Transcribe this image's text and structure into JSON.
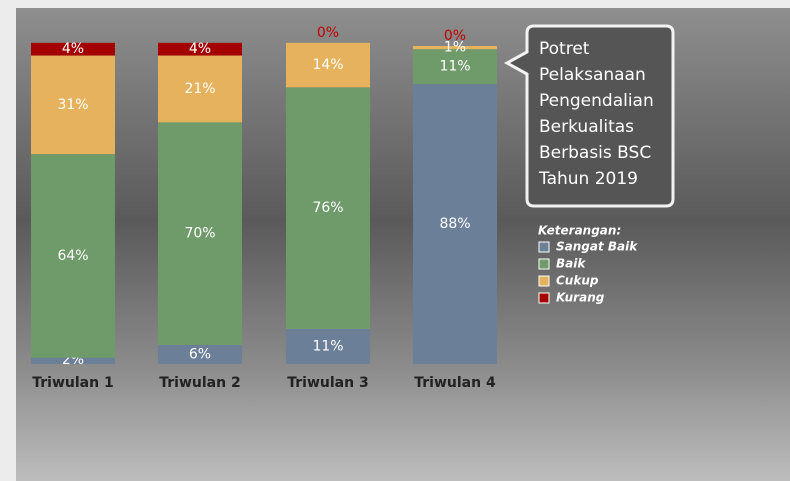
{
  "chart_data": {
    "type": "stacked_bar",
    "title": "Potret Pelaksanaan Pengendalian Berkualitas Berbasis BSC Tahun 2019",
    "legend_title": "Keterangan:",
    "categories": [
      "Triwulan 1",
      "Triwulan 2",
      "Triwulan 3",
      "Triwulan 4"
    ],
    "series": [
      {
        "name": "Sangat Baik",
        "color": "#6b7f98",
        "values": [
          2,
          6,
          11,
          88
        ],
        "value_labels": [
          "2%",
          "6%",
          "11%",
          "88%"
        ]
      },
      {
        "name": "Baik",
        "color": "#6f9a69",
        "values": [
          64,
          70,
          76,
          11
        ],
        "value_labels": [
          "64%",
          "70%",
          "76%",
          "11%"
        ]
      },
      {
        "name": "Cukup",
        "color": "#e6b25d",
        "values": [
          31,
          21,
          14,
          1
        ],
        "value_labels": [
          "31%",
          "21%",
          "14%",
          "1%"
        ]
      },
      {
        "name": "Kurang",
        "color": "#a50000",
        "values": [
          4,
          4,
          0,
          0
        ],
        "value_labels": [
          "4%",
          "4%",
          "0%",
          "0%"
        ]
      }
    ],
    "legend": "right"
  }
}
